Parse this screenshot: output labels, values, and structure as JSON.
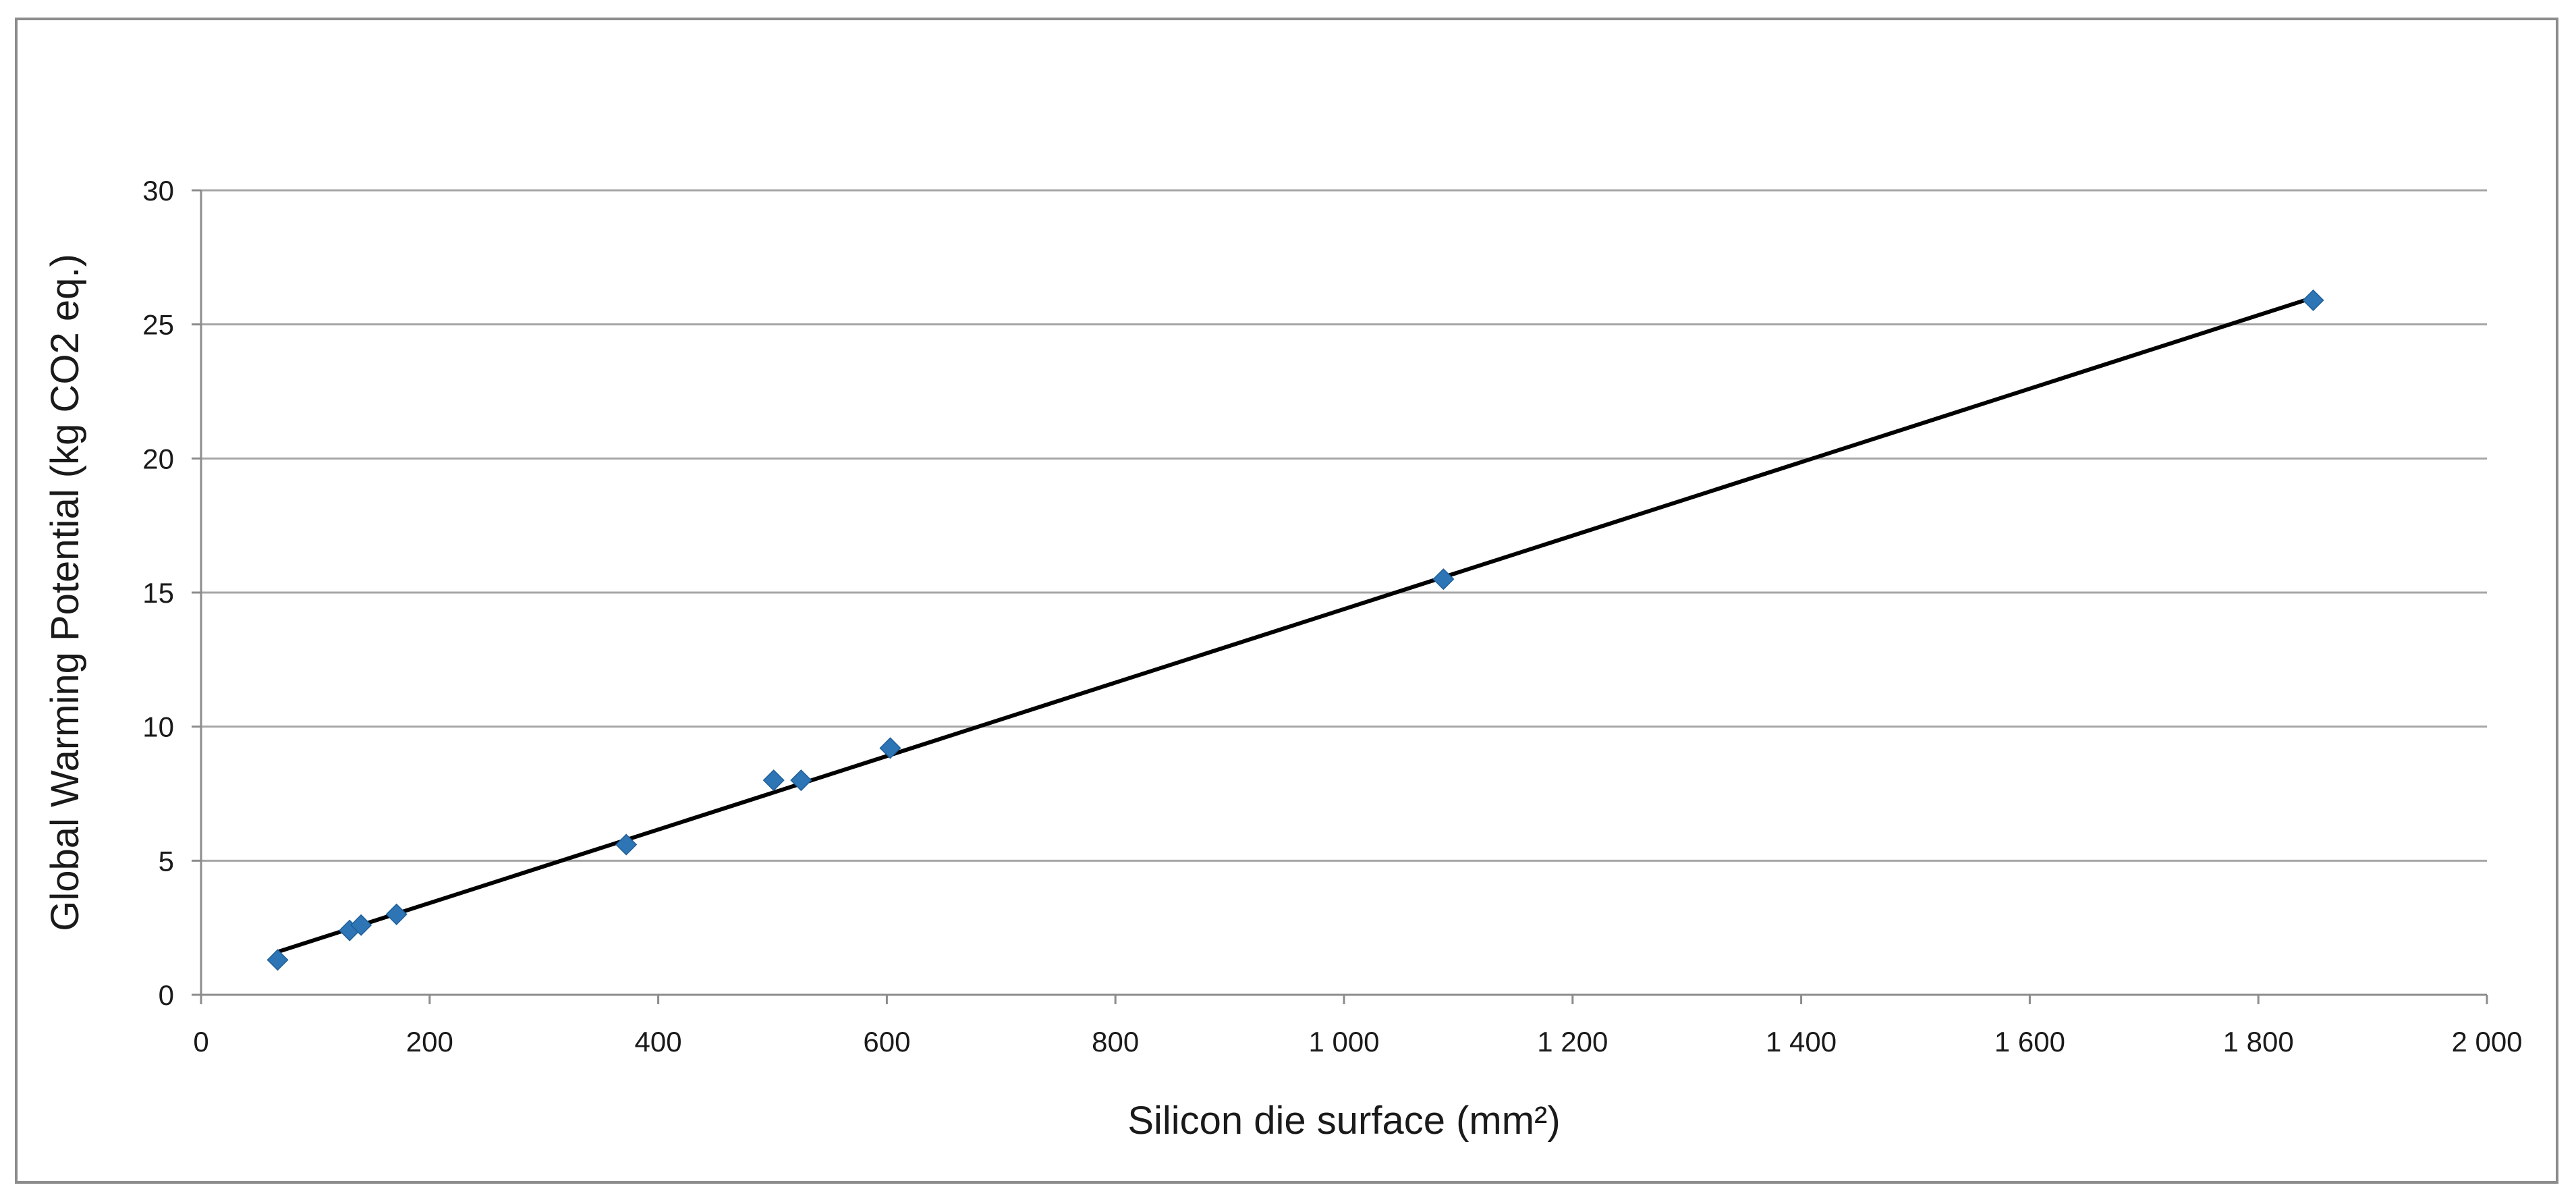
{
  "chart_data": {
    "type": "scatter",
    "title": "",
    "xlabel": "Silicon die surface (mm²)",
    "ylabel": "Global Warming Potential (kg CO2 eq.)",
    "xlim": [
      0,
      2000
    ],
    "ylim": [
      0,
      30
    ],
    "x_ticks": [
      0,
      200,
      400,
      600,
      800,
      1000,
      1200,
      1400,
      1600,
      1800,
      2000
    ],
    "x_tick_labels": [
      "0",
      "200",
      "400",
      "600",
      "800",
      "1 000",
      "1 200",
      "1 400",
      "1 600",
      "1 800",
      "2 000"
    ],
    "y_ticks": [
      0,
      5,
      10,
      15,
      20,
      25,
      30
    ],
    "y_tick_labels": [
      "0",
      "5",
      "10",
      "15",
      "20",
      "25",
      "30"
    ],
    "grid": "horizontal",
    "legend": "none",
    "points": [
      {
        "x": 67,
        "y": 1.3
      },
      {
        "x": 130,
        "y": 2.4
      },
      {
        "x": 140,
        "y": 2.6
      },
      {
        "x": 171,
        "y": 3.0
      },
      {
        "x": 372,
        "y": 5.6
      },
      {
        "x": 501,
        "y": 8.0
      },
      {
        "x": 525,
        "y": 8.0
      },
      {
        "x": 603,
        "y": 9.2
      },
      {
        "x": 1087,
        "y": 15.5
      },
      {
        "x": 1848,
        "y": 25.9
      }
    ],
    "trendline": {
      "type": "linear",
      "from": {
        "x": 67,
        "y": 1.6
      },
      "to": {
        "x": 1848,
        "y": 26.0
      }
    },
    "colors": {
      "marker": "#2e75b6",
      "trendline": "#000000",
      "gridline": "#a6a6a6",
      "axis": "#8c8c8c",
      "frame": "#8c8c8c"
    }
  }
}
